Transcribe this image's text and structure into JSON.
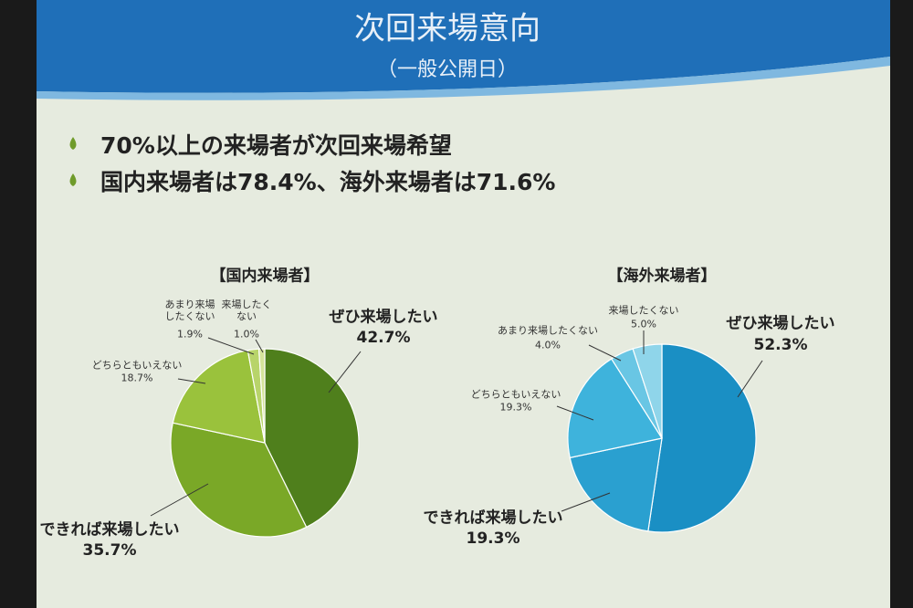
{
  "title": "次回来場意向",
  "subtitle": "（一般公開日）",
  "bullets": [
    "70%以上の来場者が次回来場希望",
    "国内来場者は78.4%、海外来場者は71.6%"
  ],
  "chart_data": [
    {
      "type": "pie",
      "title": "【国内来場者】",
      "categories": [
        "ぜひ来場したい",
        "できれば来場したい",
        "どちらともいえない",
        "あまり来場\nしたくない",
        "来場したく\nない"
      ],
      "values": [
        42.7,
        35.7,
        18.7,
        1.9,
        1.0
      ],
      "value_labels": [
        "42.7%",
        "35.7%",
        "18.7%",
        "1.9%",
        "1.0%"
      ],
      "colors": [
        "#4f7f1c",
        "#7aa827",
        "#9ac23c",
        "#b8d46a",
        "#d4e39a"
      ]
    },
    {
      "type": "pie",
      "title": "【海外来場者】",
      "categories": [
        "ぜひ来場したい",
        "できれば来場したい",
        "どちらともいえない",
        "あまり来場したくない",
        "来場したくない"
      ],
      "values": [
        52.3,
        19.3,
        19.3,
        4.0,
        5.0
      ],
      "value_labels": [
        "52.3%",
        "19.3%",
        "19.3%",
        "4.0%",
        "5.0%"
      ],
      "colors": [
        "#1a8fc4",
        "#2aa0d0",
        "#3eb3dc",
        "#69c6e4",
        "#8fd5ea"
      ]
    }
  ]
}
